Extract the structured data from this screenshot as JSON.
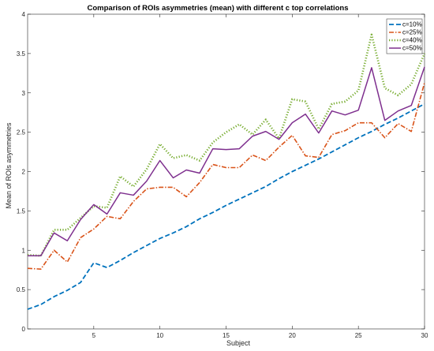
{
  "chart_data": {
    "type": "line",
    "title": "Comparison of ROIs asymmetries (mean) with different c top correlations",
    "xlabel": "Subject",
    "ylabel": "Mean of ROIs asymmetries",
    "xlim": [
      0,
      30
    ],
    "ylim": [
      0,
      4
    ],
    "xticks": [
      5,
      10,
      15,
      20,
      25,
      30
    ],
    "yticks": [
      0,
      0.5,
      1,
      1.5,
      2,
      2.5,
      3,
      3.5,
      4
    ],
    "xtick_labels": [
      "5",
      "10",
      "15",
      "20",
      "25",
      "30"
    ],
    "ytick_labels": [
      "0",
      "0.5",
      "1",
      "1.5",
      "2",
      "2.5",
      "3",
      "3.5",
      "4"
    ],
    "grid": false,
    "legend_position": "top-right",
    "x": [
      0,
      1,
      2,
      3,
      4,
      5,
      6,
      7,
      8,
      9,
      10,
      11,
      12,
      13,
      14,
      15,
      16,
      17,
      18,
      19,
      20,
      21,
      22,
      23,
      24,
      25,
      26,
      27,
      28,
      29,
      30
    ],
    "series": [
      {
        "name": "c=10%",
        "color": "#0072BD",
        "dash": "dashed",
        "values": [
          0.25,
          0.31,
          0.41,
          0.49,
          0.59,
          0.84,
          0.78,
          0.87,
          0.97,
          1.06,
          1.15,
          1.22,
          1.3,
          1.4,
          1.48,
          1.57,
          1.65,
          1.73,
          1.81,
          1.91,
          2.0,
          2.08,
          2.16,
          2.25,
          2.34,
          2.43,
          2.51,
          2.6,
          2.68,
          2.77,
          2.86
        ]
      },
      {
        "name": "c=25%",
        "color": "#D95319",
        "dash": "dashdot",
        "values": [
          0.77,
          0.76,
          1.0,
          0.85,
          1.16,
          1.27,
          1.43,
          1.4,
          1.62,
          1.78,
          1.8,
          1.8,
          1.68,
          1.86,
          2.09,
          2.05,
          2.05,
          2.21,
          2.14,
          2.31,
          2.46,
          2.2,
          2.18,
          2.47,
          2.52,
          2.62,
          2.62,
          2.43,
          2.61,
          2.51,
          3.13
        ]
      },
      {
        "name": "c=40%",
        "color": "#77AC30",
        "dash": "dotted",
        "values": [
          0.94,
          0.93,
          1.26,
          1.26,
          1.41,
          1.56,
          1.54,
          1.94,
          1.81,
          2.03,
          2.35,
          2.17,
          2.21,
          2.14,
          2.37,
          2.5,
          2.6,
          2.47,
          2.66,
          2.42,
          2.92,
          2.89,
          2.54,
          2.86,
          2.89,
          3.03,
          3.74,
          3.06,
          2.97,
          3.11,
          3.5
        ]
      },
      {
        "name": "c=50%",
        "color": "#7E2F8E",
        "dash": "solid",
        "values": [
          0.93,
          0.93,
          1.22,
          1.12,
          1.39,
          1.58,
          1.46,
          1.73,
          1.7,
          1.88,
          2.14,
          1.92,
          2.02,
          1.98,
          2.29,
          2.28,
          2.29,
          2.45,
          2.51,
          2.41,
          2.62,
          2.73,
          2.49,
          2.77,
          2.72,
          2.78,
          3.32,
          2.65,
          2.77,
          2.84,
          3.33
        ]
      }
    ]
  }
}
